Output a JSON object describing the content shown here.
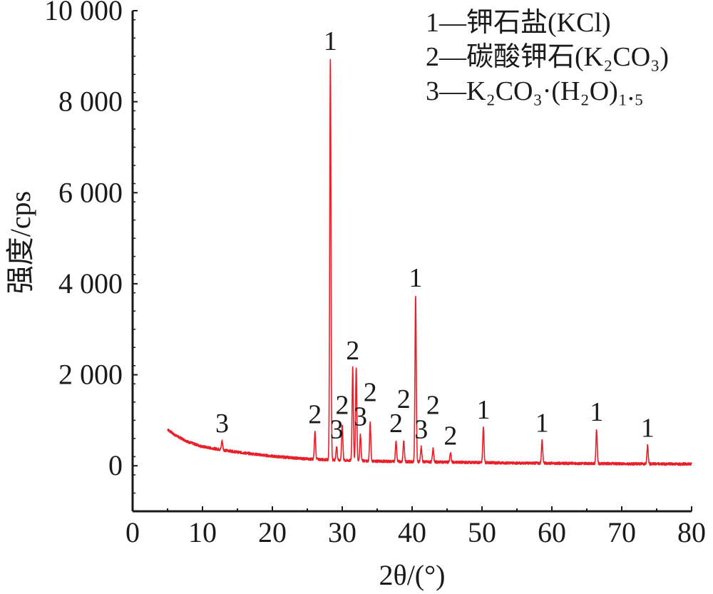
{
  "chart_data": {
    "type": "line",
    "xlabel": "2θ/(°)",
    "ylabel": "强度/cps",
    "xlim": [
      0,
      80
    ],
    "ylim": [
      -1000,
      10000
    ],
    "x_ticks": [
      0,
      10,
      20,
      30,
      40,
      50,
      60,
      70,
      80
    ],
    "x_tick_labels": [
      "0",
      "10",
      "20",
      "30",
      "40",
      "50",
      "60",
      "70",
      "80"
    ],
    "y_ticks": [
      0,
      2000,
      4000,
      6000,
      8000,
      10000
    ],
    "y_tick_labels": [
      "0",
      "2 000",
      "4 000",
      "6 000",
      "8 000",
      "10 000"
    ],
    "grid": false,
    "legend_position": "top-right",
    "series_color": "#e8202a",
    "legend": [
      {
        "id": "1",
        "text": "1—钾石盐(KCl)"
      },
      {
        "id": "2",
        "text": "2—碳酸钾石(K₂CO₃)"
      },
      {
        "id": "3",
        "text": "3—K₂CO₃·(H₂O)₁.₅"
      }
    ],
    "baseline": [
      {
        "x": 5,
        "y": 800
      },
      {
        "x": 6,
        "y": 680
      },
      {
        "x": 8,
        "y": 520
      },
      {
        "x": 10,
        "y": 420
      },
      {
        "x": 12,
        "y": 370
      },
      {
        "x": 15,
        "y": 300
      },
      {
        "x": 20,
        "y": 210
      },
      {
        "x": 25,
        "y": 150
      },
      {
        "x": 30,
        "y": 120
      },
      {
        "x": 35,
        "y": 100
      },
      {
        "x": 40,
        "y": 90
      },
      {
        "x": 45,
        "y": 80
      },
      {
        "x": 50,
        "y": 70
      },
      {
        "x": 55,
        "y": 60
      },
      {
        "x": 60,
        "y": 55
      },
      {
        "x": 65,
        "y": 50
      },
      {
        "x": 70,
        "y": 45
      },
      {
        "x": 75,
        "y": 40
      },
      {
        "x": 80,
        "y": 40
      }
    ],
    "peaks": [
      {
        "x": 12.8,
        "y": 550,
        "label": "3"
      },
      {
        "x": 26.1,
        "y": 750,
        "label": "2"
      },
      {
        "x": 28.3,
        "y": 8950,
        "label": "1"
      },
      {
        "x": 29.2,
        "y": 420,
        "label": "3"
      },
      {
        "x": 30.0,
        "y": 900,
        "label": "2"
      },
      {
        "x": 31.5,
        "y": 2150,
        "label": "2"
      },
      {
        "x": 32.0,
        "y": 2150,
        "label": ""
      },
      {
        "x": 32.6,
        "y": 700,
        "label": "3"
      },
      {
        "x": 34.0,
        "y": 950,
        "label": "2"
      },
      {
        "x": 37.7,
        "y": 550,
        "label": "2"
      },
      {
        "x": 38.8,
        "y": 550,
        "label": "2"
      },
      {
        "x": 40.5,
        "y": 3750,
        "label": "1"
      },
      {
        "x": 41.3,
        "y": 420,
        "label": "3"
      },
      {
        "x": 43.0,
        "y": 400,
        "label": "2"
      },
      {
        "x": 45.5,
        "y": 280,
        "label": "2"
      },
      {
        "x": 50.2,
        "y": 850,
        "label": "1"
      },
      {
        "x": 58.6,
        "y": 560,
        "label": "1"
      },
      {
        "x": 66.4,
        "y": 800,
        "label": "1"
      },
      {
        "x": 73.7,
        "y": 450,
        "label": "1"
      }
    ]
  }
}
